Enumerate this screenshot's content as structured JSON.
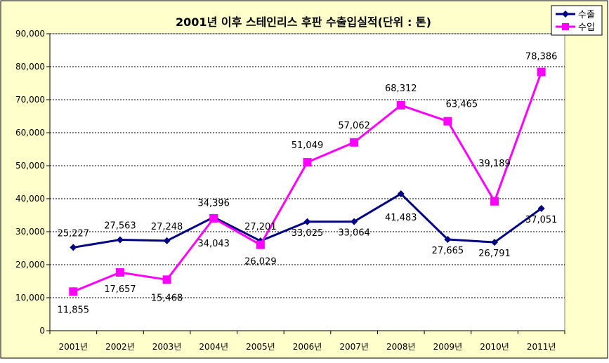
{
  "chart_data": {
    "type": "line",
    "title": "2001년 이후 스테인리스 후판 수출입실적(단위 : 톤)",
    "categories": [
      "2001년",
      "2002년",
      "2003년",
      "2004년",
      "2005년",
      "2006년",
      "2007년",
      "2008년",
      "2009년",
      "2010년",
      "2011년"
    ],
    "y_ticks": [
      "0",
      "10,000",
      "20,000",
      "30,000",
      "40,000",
      "50,000",
      "60,000",
      "70,000",
      "80,000",
      "90,000"
    ],
    "ylim": [
      0,
      90000
    ],
    "grid": "horizontal dotted",
    "legend_position": "top-right",
    "background": "#ffffcc",
    "plot_background": "#ffffff",
    "series": [
      {
        "name": "수출",
        "color": "#000080",
        "marker": "diamond",
        "values": [
          25227,
          27563,
          27248,
          34396,
          27201,
          33025,
          33064,
          41483,
          27665,
          26791,
          37051
        ],
        "labels": [
          "25,227",
          "27,563",
          "27,248",
          "34,396",
          "27,201",
          "33,025",
          "33,064",
          "41,483",
          "27,665",
          "26,791",
          "37,051"
        ]
      },
      {
        "name": "수입",
        "color": "#ff00ff",
        "marker": "square",
        "values": [
          11855,
          17657,
          15468,
          34043,
          26029,
          51049,
          57062,
          68312,
          63465,
          39189,
          78386
        ],
        "labels": [
          "11,855",
          "17,657",
          "15,468",
          "34,043",
          "26,029",
          "51,049",
          "57,062",
          "68,312",
          "63,465",
          "39,189",
          "78,386"
        ]
      }
    ]
  }
}
